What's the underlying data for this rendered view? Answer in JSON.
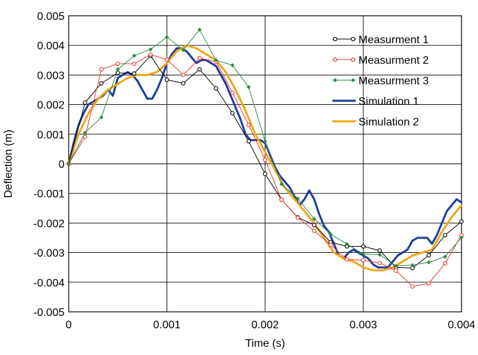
{
  "chart_data": {
    "type": "line",
    "xlabel": "Time (s)",
    "ylabel": "Deflection (m)",
    "xlim": [
      0,
      0.004
    ],
    "ylim": [
      -0.005,
      0.005
    ],
    "x_ticks": [
      {
        "value": 0,
        "label": "0"
      },
      {
        "value": 0.001,
        "label": "0.001"
      },
      {
        "value": 0.002,
        "label": "0.002"
      },
      {
        "value": 0.003,
        "label": "0.003"
      },
      {
        "value": 0.004,
        "label": "0.004"
      }
    ],
    "y_ticks": [
      {
        "value": 0.005,
        "label": "0.005"
      },
      {
        "value": 0.004,
        "label": "0.004"
      },
      {
        "value": 0.003,
        "label": "0.003"
      },
      {
        "value": 0.002,
        "label": "0.002"
      },
      {
        "value": 0.001,
        "label": "0.001"
      },
      {
        "value": 0,
        "label": "0"
      },
      {
        "value": -0.001,
        "label": "-0.001"
      },
      {
        "value": -0.002,
        "label": "-0.002"
      },
      {
        "value": -0.003,
        "label": "-0.003"
      },
      {
        "value": -0.004,
        "label": "-0.004"
      },
      {
        "value": -0.005,
        "label": "-0.005"
      }
    ],
    "grid": true,
    "legend_position": "top-right",
    "series": [
      {
        "name": "Measurment 1",
        "color": "#000000",
        "marker": "circle",
        "width": 1,
        "points": [
          [
            0,
            0
          ],
          [
            0.000167,
            0.00207
          ],
          [
            0.000333,
            0.00272
          ],
          [
            0.0005,
            0.00307
          ],
          [
            0.000667,
            0.00305
          ],
          [
            0.000833,
            0.00365
          ],
          [
            0.001,
            0.00284
          ],
          [
            0.001167,
            0.00272
          ],
          [
            0.001333,
            0.00319
          ],
          [
            0.0015,
            0.00255
          ],
          [
            0.001667,
            0.00171
          ],
          [
            0.001833,
            0.00076
          ],
          [
            0.002,
            -0.00034
          ],
          [
            0.002167,
            -0.00121
          ],
          [
            0.002333,
            -0.00181
          ],
          [
            0.0025,
            -0.00207
          ],
          [
            0.002667,
            -0.00265
          ],
          [
            0.002833,
            -0.00279
          ],
          [
            0.003,
            -0.00279
          ],
          [
            0.003167,
            -0.00293
          ],
          [
            0.003333,
            -0.0035
          ],
          [
            0.0035,
            -0.00352
          ],
          [
            0.003667,
            -0.00309
          ],
          [
            0.003833,
            -0.00241
          ],
          [
            0.004,
            -0.00195
          ]
        ]
      },
      {
        "name": "Measurment 2",
        "color": "#e8392f",
        "marker": "circle",
        "width": 1,
        "points": [
          [
            0,
            0
          ],
          [
            0.000167,
            0.00091
          ],
          [
            0.000333,
            0.00319
          ],
          [
            0.0005,
            0.00338
          ],
          [
            0.000667,
            0.00338
          ],
          [
            0.000833,
            0.00369
          ],
          [
            0.001,
            0.00352
          ],
          [
            0.001167,
            0.003
          ],
          [
            0.001333,
            0.00357
          ],
          [
            0.0015,
            0.00345
          ],
          [
            0.001667,
            0.0024
          ],
          [
            0.001833,
            0.00131
          ],
          [
            0.002,
            0.00014
          ],
          [
            0.002167,
            -0.00121
          ],
          [
            0.002333,
            -0.00182
          ],
          [
            0.0025,
            -0.00226
          ],
          [
            0.002667,
            -0.00274
          ],
          [
            0.002833,
            -0.00323
          ],
          [
            0.003,
            -0.00326
          ],
          [
            0.003167,
            -0.00335
          ],
          [
            0.003333,
            -0.00361
          ],
          [
            0.0035,
            -0.00414
          ],
          [
            0.003667,
            -0.00404
          ],
          [
            0.003833,
            -0.00336
          ],
          [
            0.004,
            -0.00241
          ]
        ]
      },
      {
        "name": "Measurment 3",
        "color": "#2e8b3e",
        "marker": "diamond",
        "width": 1,
        "points": [
          [
            0,
            0
          ],
          [
            0.000167,
            0.00105
          ],
          [
            0.000333,
            0.00157
          ],
          [
            0.0005,
            0.00319
          ],
          [
            0.000667,
            0.00365
          ],
          [
            0.000833,
            0.00386
          ],
          [
            0.001,
            0.00428
          ],
          [
            0.001167,
            0.00384
          ],
          [
            0.001333,
            0.00453
          ],
          [
            0.0015,
            0.0035
          ],
          [
            0.001667,
            0.00333
          ],
          [
            0.001833,
            0.00259
          ],
          [
            0.002,
            0.00076
          ],
          [
            0.002167,
            -0.00069
          ],
          [
            0.002333,
            -0.00117
          ],
          [
            0.0025,
            -0.00186
          ],
          [
            0.002667,
            -0.00238
          ],
          [
            0.002833,
            -0.00271
          ],
          [
            0.003,
            -0.00305
          ],
          [
            0.003167,
            -0.00307
          ],
          [
            0.003333,
            -0.00345
          ],
          [
            0.0035,
            -0.00342
          ],
          [
            0.003667,
            -0.00333
          ],
          [
            0.003833,
            -0.00314
          ],
          [
            0.004,
            -0.00249
          ]
        ]
      },
      {
        "name": "Simulation 1",
        "color": "#1f3d9e",
        "marker": "none",
        "width": 3,
        "points": [
          [
            0,
            0
          ],
          [
            5e-05,
            0.0007
          ],
          [
            0.0001,
            0.0013
          ],
          [
            0.00015,
            0.0017
          ],
          [
            0.0002,
            0.002
          ],
          [
            0.00025,
            0.0021
          ],
          [
            0.0003,
            0.0022
          ],
          [
            0.00035,
            0.0023
          ],
          [
            0.0004,
            0.0025
          ],
          [
            0.00045,
            0.0023
          ],
          [
            0.0005,
            0.0029
          ],
          [
            0.00055,
            0.003
          ],
          [
            0.0006,
            0.0031
          ],
          [
            0.00065,
            0.003
          ],
          [
            0.0007,
            0.0028
          ],
          [
            0.00075,
            0.0025
          ],
          [
            0.0008,
            0.0022
          ],
          [
            0.00085,
            0.0022
          ],
          [
            0.0009,
            0.0025
          ],
          [
            0.00095,
            0.0029
          ],
          [
            0.001,
            0.0034
          ],
          [
            0.00105,
            0.0037
          ],
          [
            0.0011,
            0.0039
          ],
          [
            0.00115,
            0.0039
          ],
          [
            0.0012,
            0.0038
          ],
          [
            0.00125,
            0.0036
          ],
          [
            0.0013,
            0.0034
          ],
          [
            0.00135,
            0.0035
          ],
          [
            0.0014,
            0.0035
          ],
          [
            0.00145,
            0.0034
          ],
          [
            0.0015,
            0.0033
          ],
          [
            0.00155,
            0.003
          ],
          [
            0.0016,
            0.0027
          ],
          [
            0.00165,
            0.0023
          ],
          [
            0.0017,
            0.0019
          ],
          [
            0.00175,
            0.0015
          ],
          [
            0.0018,
            0.001
          ],
          [
            0.00185,
            0.0008
          ],
          [
            0.0019,
            0.0008
          ],
          [
            0.00195,
            0.0008
          ],
          [
            0.002,
            0.0007
          ],
          [
            0.00205,
            0.0003
          ],
          [
            0.0021,
            -0.0001
          ],
          [
            0.00215,
            -0.0004
          ],
          [
            0.0022,
            -0.0006
          ],
          [
            0.00225,
            -0.0008
          ],
          [
            0.0023,
            -0.0011
          ],
          [
            0.00235,
            -0.0014
          ],
          [
            0.0024,
            -0.0012
          ],
          [
            0.00245,
            -0.0009
          ],
          [
            0.0025,
            -0.0012
          ],
          [
            0.00255,
            -0.0017
          ],
          [
            0.0026,
            -0.0021
          ],
          [
            0.00265,
            -0.0023
          ],
          [
            0.0027,
            -0.0027
          ],
          [
            0.00275,
            -0.0031
          ],
          [
            0.0028,
            -0.0032
          ],
          [
            0.00285,
            -0.003
          ],
          [
            0.0029,
            -0.0029
          ],
          [
            0.00295,
            -0.003
          ],
          [
            0.003,
            -0.0031
          ],
          [
            0.00305,
            -0.0032
          ],
          [
            0.0031,
            -0.0034
          ],
          [
            0.00315,
            -0.0035
          ],
          [
            0.0032,
            -0.0035
          ],
          [
            0.00325,
            -0.0035
          ],
          [
            0.0033,
            -0.0033
          ],
          [
            0.00335,
            -0.0031
          ],
          [
            0.0034,
            -0.003
          ],
          [
            0.00345,
            -0.0029
          ],
          [
            0.0035,
            -0.0026
          ],
          [
            0.00355,
            -0.0025
          ],
          [
            0.0036,
            -0.0025
          ],
          [
            0.00365,
            -0.0025
          ],
          [
            0.0037,
            -0.0027
          ],
          [
            0.00375,
            -0.0024
          ],
          [
            0.0038,
            -0.002
          ],
          [
            0.00385,
            -0.0016
          ],
          [
            0.0039,
            -0.0014
          ],
          [
            0.00395,
            -0.0012
          ],
          [
            0.004,
            -0.0013
          ]
        ]
      },
      {
        "name": "Simulation 2",
        "color": "#f2a41a",
        "marker": "none",
        "width": 3,
        "points": [
          [
            0,
            0
          ],
          [
            0.0001,
            0.001
          ],
          [
            0.0002,
            0.0017
          ],
          [
            0.0003,
            0.0022
          ],
          [
            0.0004,
            0.0025
          ],
          [
            0.0005,
            0.0027
          ],
          [
            0.0006,
            0.0029
          ],
          [
            0.0007,
            0.003
          ],
          [
            0.0008,
            0.003
          ],
          [
            0.0009,
            0.0031
          ],
          [
            0.001,
            0.0034
          ],
          [
            0.0011,
            0.0038
          ],
          [
            0.0012,
            0.004
          ],
          [
            0.0013,
            0.0039
          ],
          [
            0.0014,
            0.0037
          ],
          [
            0.0015,
            0.0035
          ],
          [
            0.0016,
            0.0031
          ],
          [
            0.0017,
            0.0025
          ],
          [
            0.0018,
            0.0018
          ],
          [
            0.0019,
            0.001
          ],
          [
            0.002,
            0.0004
          ],
          [
            0.0021,
            -0.0002
          ],
          [
            0.0022,
            -0.0008
          ],
          [
            0.0023,
            -0.0012
          ],
          [
            0.0024,
            -0.0016
          ],
          [
            0.0025,
            -0.002
          ],
          [
            0.0026,
            -0.0025
          ],
          [
            0.0027,
            -0.003
          ],
          [
            0.0028,
            -0.0032
          ],
          [
            0.0029,
            -0.0033
          ],
          [
            0.003,
            -0.0035
          ],
          [
            0.0031,
            -0.0036
          ],
          [
            0.0032,
            -0.0036
          ],
          [
            0.0033,
            -0.0035
          ],
          [
            0.0034,
            -0.0033
          ],
          [
            0.0035,
            -0.0031
          ],
          [
            0.0036,
            -0.003
          ],
          [
            0.0037,
            -0.0029
          ],
          [
            0.0038,
            -0.0023
          ],
          [
            0.0039,
            -0.0018
          ],
          [
            0.004,
            -0.0014
          ]
        ]
      }
    ]
  }
}
